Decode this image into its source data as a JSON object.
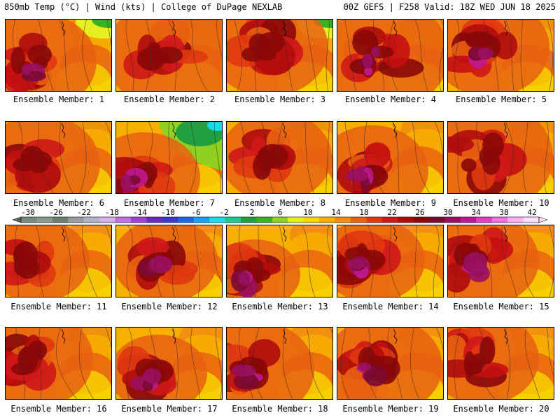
{
  "header": {
    "left": "850mb Temp (°C) | Wind (kts) | College of DuPage NEXLAB",
    "right": "00Z GEFS | F258 Valid: 18Z WED JUN 18 2025"
  },
  "colorbar": {
    "ticks": [
      "-30",
      "-26",
      "-22",
      "-18",
      "-14",
      "-10",
      "-6",
      "-2",
      "2",
      "6",
      "10",
      "14",
      "18",
      "22",
      "26",
      "30",
      "34",
      "38",
      "42"
    ],
    "colors": [
      "#7a8a7a",
      "#8a9a8a",
      "#6e7e6e",
      "#9a9aa0",
      "#b4b4c8",
      "#d6b0e6",
      "#c070e0",
      "#a040d0",
      "#6a2cc0",
      "#3a3ad0",
      "#1e66e6",
      "#1aa0f0",
      "#1cd8e8",
      "#20c890",
      "#20a040",
      "#38b020",
      "#90d020",
      "#e6f020",
      "#f8d800",
      "#f8b000",
      "#f08a10",
      "#e86010",
      "#e03810",
      "#d01818",
      "#b00c0c",
      "#8a0808",
      "#7a0a30",
      "#9a1060",
      "#c01890",
      "#e040c0",
      "#f070e0",
      "#ffb0f0",
      "#ffe0ff"
    ]
  },
  "members": [
    {
      "label": "Ensemble Member: 1"
    },
    {
      "label": "Ensemble Member: 2"
    },
    {
      "label": "Ensemble Member: 3"
    },
    {
      "label": "Ensemble Member: 4"
    },
    {
      "label": "Ensemble Member: 5"
    },
    {
      "label": "Ensemble Member: 6"
    },
    {
      "label": "Ensemble Member: 7"
    },
    {
      "label": "Ensemble Member: 8"
    },
    {
      "label": "Ensemble Member: 9"
    },
    {
      "label": "Ensemble Member: 10"
    },
    {
      "label": "Ensemble Member: 11"
    },
    {
      "label": "Ensemble Member: 12"
    },
    {
      "label": "Ensemble Member: 13"
    },
    {
      "label": "Ensemble Member: 14"
    },
    {
      "label": "Ensemble Member: 15"
    },
    {
      "label": "Ensemble Member: 16"
    },
    {
      "label": "Ensemble Member: 17"
    },
    {
      "label": "Ensemble Member: 18"
    },
    {
      "label": "Ensemble Member: 19"
    },
    {
      "label": "Ensemble Member: 20"
    }
  ]
}
